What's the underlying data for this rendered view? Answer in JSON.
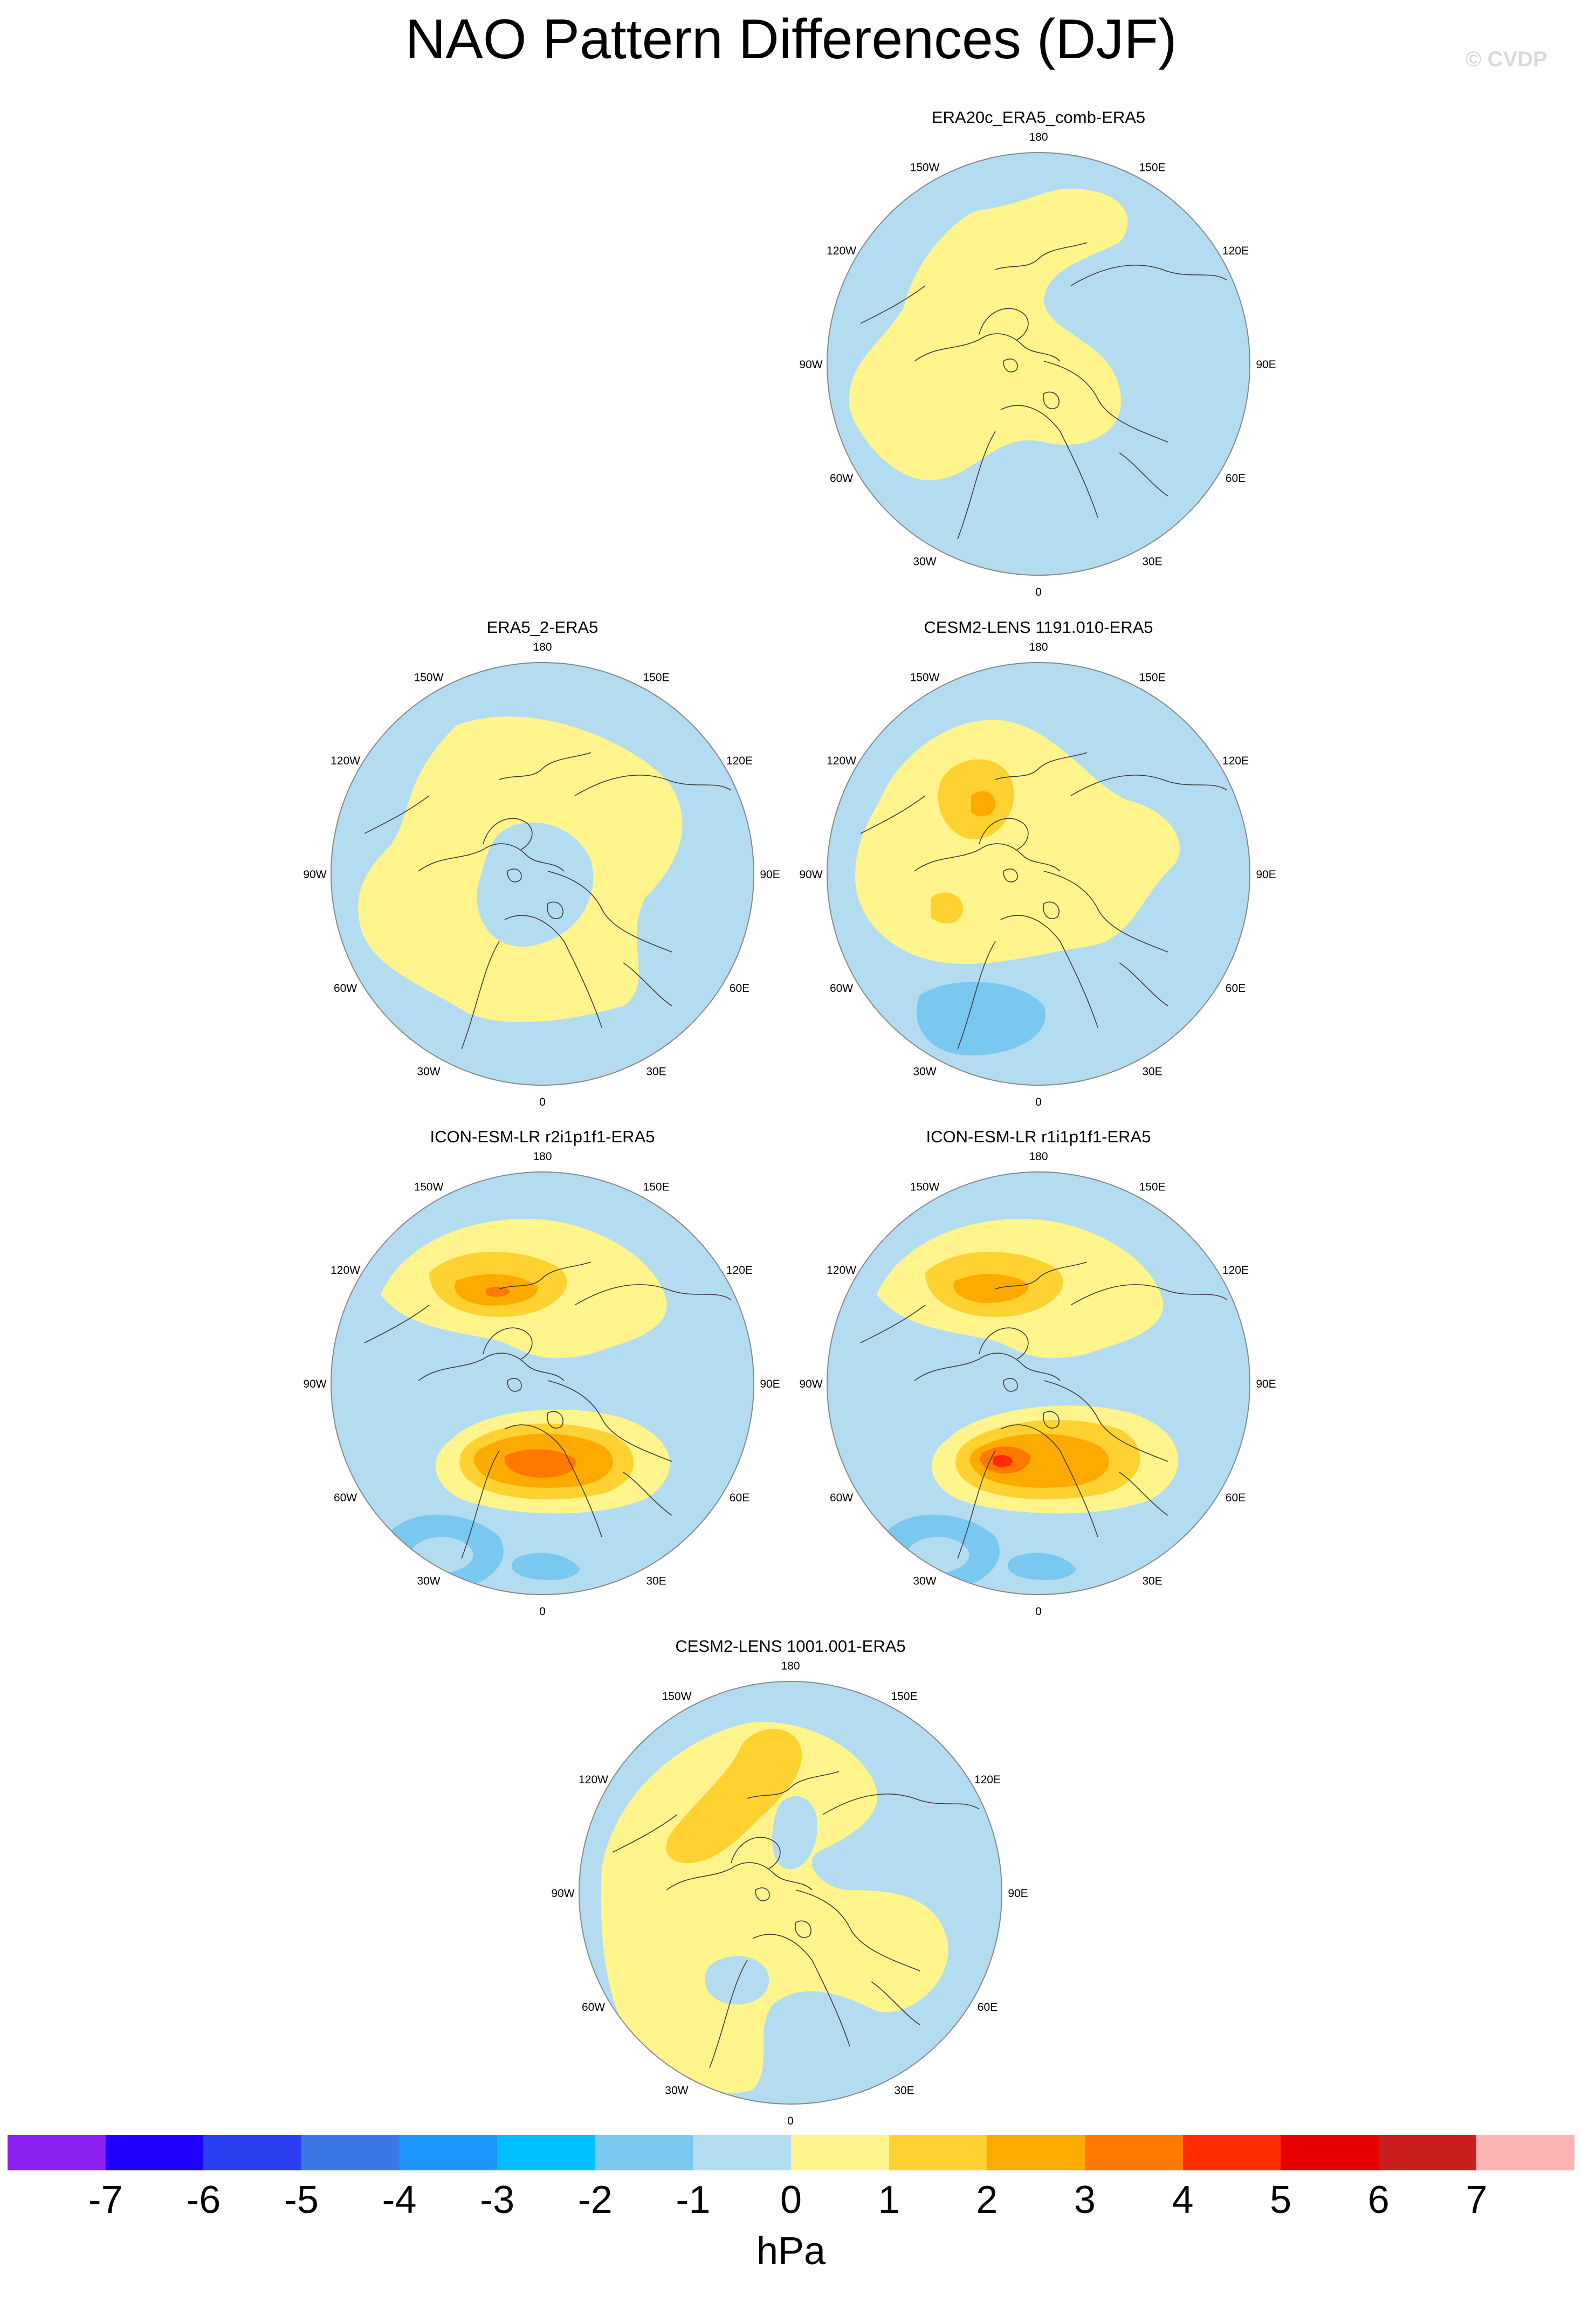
{
  "title": "NAO Pattern Differences (DJF)",
  "watermark": "© CVDP",
  "lon_labels": {
    "n180": "180",
    "w150": "150W",
    "e150": "150E",
    "w120": "120W",
    "e120": "120E",
    "w90": "90W",
    "e90": "90E",
    "w60": "60W",
    "e60": "60E",
    "w30": "30W",
    "e30": "30E",
    "s0": "0"
  },
  "panels": [
    {
      "title": "ERA20c_ERA5_comb-ERA5",
      "pattern": "era20c"
    },
    {
      "title": "ERA5_2-ERA5",
      "pattern": "era5_2"
    },
    {
      "title": "CESM2-LENS 1191.010-ERA5",
      "pattern": "cesm1191"
    },
    {
      "title": "ICON-ESM-LR r2i1p1f1-ERA5",
      "pattern": "icon_r2"
    },
    {
      "title": "ICON-ESM-LR r1i1p1f1-ERA5",
      "pattern": "icon_r1"
    },
    {
      "title": "CESM2-LENS 1001.001-ERA5",
      "pattern": "cesm1001"
    }
  ],
  "colorbar": {
    "colors": [
      "#8a1ff0",
      "#1f00ff",
      "#2a3df0",
      "#3a78e8",
      "#1e96ff",
      "#00bfff",
      "#78c8f0",
      "#b4dcf0",
      "#fff58c",
      "#ffd232",
      "#ffaa00",
      "#ff7800",
      "#ff2d00",
      "#e60000",
      "#c81e1e",
      "#ffb4b4"
    ],
    "labels": [
      "-7",
      "-6",
      "-5",
      "-4",
      "-3",
      "-2",
      "-1",
      "0",
      "1",
      "2",
      "3",
      "4",
      "5",
      "6",
      "7"
    ],
    "unit": "hPa"
  }
}
